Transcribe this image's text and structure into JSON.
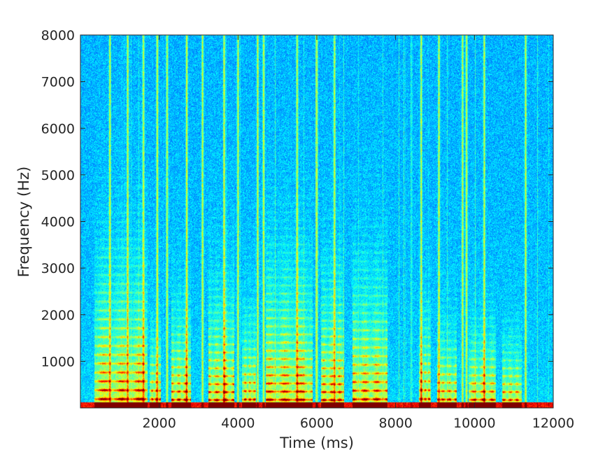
{
  "chart_data": {
    "type": "heatmap",
    "title": "",
    "xlabel": "Time (ms)",
    "ylabel": "Frequency (Hz)",
    "xlim": [
      0,
      12000
    ],
    "ylim": [
      0,
      8000
    ],
    "x_ticks": [
      2000,
      4000,
      6000,
      8000,
      10000,
      12000
    ],
    "y_ticks": [
      1000,
      2000,
      3000,
      4000,
      5000,
      6000,
      7000,
      8000
    ],
    "x_tick_labels": [
      "2000",
      "4000",
      "6000",
      "8000",
      "10000",
      "12000"
    ],
    "y_tick_labels": [
      "1000",
      "2000",
      "3000",
      "4000",
      "5000",
      "6000",
      "7000",
      "8000"
    ],
    "colormap": "jet",
    "grid": false,
    "voiced_segments": [
      {
        "start": 350,
        "end": 1700,
        "f0": 190,
        "top": 2800
      },
      {
        "start": 1750,
        "end": 2050,
        "f0": 185,
        "top": 1500
      },
      {
        "start": 2300,
        "end": 2800,
        "f0": 175,
        "top": 2000
      },
      {
        "start": 3250,
        "end": 3900,
        "f0": 170,
        "top": 2300
      },
      {
        "start": 4100,
        "end": 4450,
        "f0": 180,
        "top": 1800
      },
      {
        "start": 4700,
        "end": 5900,
        "f0": 175,
        "top": 2800
      },
      {
        "start": 6100,
        "end": 6700,
        "f0": 170,
        "top": 2500
      },
      {
        "start": 6900,
        "end": 7800,
        "f0": 185,
        "top": 2600
      },
      {
        "start": 8600,
        "end": 8900,
        "f0": 190,
        "top": 1800
      },
      {
        "start": 9050,
        "end": 9550,
        "f0": 180,
        "top": 1500
      },
      {
        "start": 9850,
        "end": 10550,
        "f0": 175,
        "top": 1500
      },
      {
        "start": 10700,
        "end": 11200,
        "f0": 170,
        "top": 1300
      }
    ],
    "fricative_bursts": [
      750,
      1200,
      1600,
      1950,
      2200,
      2700,
      3100,
      3650,
      4000,
      4500,
      4650,
      5500,
      6000,
      6450,
      8650,
      9100,
      9700,
      9800,
      10250,
      11300
    ]
  }
}
